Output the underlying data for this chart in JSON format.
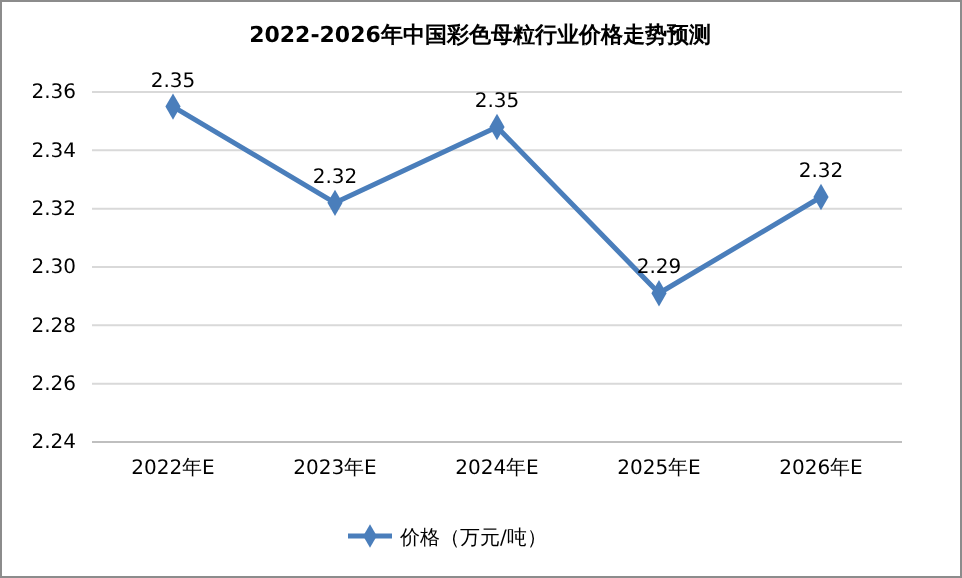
{
  "chart_data": {
    "type": "line",
    "title": "2022-2026年中国彩色母粒行业价格走势预测",
    "categories": [
      "2022年E",
      "2023年E",
      "2024年E",
      "2025年E",
      "2026年E"
    ],
    "series": [
      {
        "name": "价格（万元/吨）",
        "color": "#4a7ebb",
        "values": [
          2.355,
          2.322,
          2.348,
          2.291,
          2.324
        ],
        "value_labels": [
          "2.35",
          "2.32",
          "2.35",
          "2.29",
          "2.32"
        ]
      }
    ],
    "ylim": [
      2.24,
      2.36
    ],
    "yticks": [
      {
        "value": 2.24,
        "label": "2.24"
      },
      {
        "value": 2.26,
        "label": "2.26"
      },
      {
        "value": 2.28,
        "label": "2.28"
      },
      {
        "value": 2.3,
        "label": "2.30"
      },
      {
        "value": 2.32,
        "label": "2.32"
      },
      {
        "value": 2.34,
        "label": "2.34"
      },
      {
        "value": 2.36,
        "label": "2.36"
      }
    ],
    "grid": "y",
    "legend": "bottom",
    "marker": "diamond",
    "line_style": "solid"
  }
}
